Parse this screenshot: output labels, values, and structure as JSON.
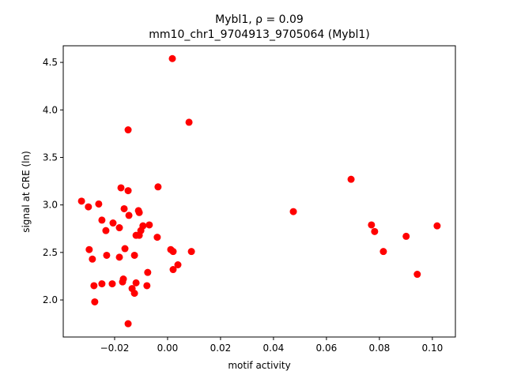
{
  "chart_data": {
    "type": "scatter",
    "title": "Mybl1, ρ = 0.09",
    "subtitle": "mm10_chr1_9704913_9705064 (Mybl1)",
    "x_label": "motif activity",
    "y_label": "signal at CRE (ln)",
    "color": "#ff0000",
    "xlim": [
      -0.0394,
      0.1087
    ],
    "ylim": [
      1.61,
      4.675
    ],
    "xticks": [
      {
        "value": -0.02,
        "label": "−0.02"
      },
      {
        "value": 0,
        "label": "0.00"
      },
      {
        "value": 0.02,
        "label": "0.02"
      },
      {
        "value": 0.04,
        "label": "0.04"
      },
      {
        "value": 0.06,
        "label": "0.06"
      },
      {
        "value": 0.08,
        "label": "0.08"
      },
      {
        "value": 0.1,
        "label": "0.10"
      }
    ],
    "yticks": [
      {
        "value": 2,
        "label": "2.0"
      },
      2.5,
      {
        "value": 3,
        "label": "3.0"
      },
      3.5,
      {
        "value": 4,
        "label": "4.0"
      },
      4.5
    ],
    "x": [
      0.0018,
      0.0081,
      -0.0149,
      0.0693,
      -0.0176,
      -0.0036,
      -0.0149,
      -0.0325,
      -0.026,
      -0.0299,
      -0.0164,
      -0.011,
      -0.0107,
      0.0475,
      -0.0146,
      -0.0248,
      -0.0206,
      -0.0069,
      -0.0093,
      0.077,
      0.0782,
      0.1018,
      -0.0182,
      -0.0233,
      -0.0101,
      -0.0119,
      -0.0107,
      -0.0039,
      0.0901,
      -0.0161,
      -0.0296,
      0.0012,
      0.0021,
      0.009,
      0.0815,
      -0.023,
      -0.0125,
      -0.0182,
      -0.0284,
      0.0039,
      0.0021,
      -0.0075,
      0.0943,
      -0.0167,
      -0.017,
      -0.0119,
      -0.0248,
      -0.0209,
      -0.0078,
      -0.0278,
      -0.0134,
      -0.0125,
      -0.0275,
      -0.0149
    ],
    "y": [
      4.54,
      3.87,
      3.79,
      3.27,
      3.18,
      3.19,
      3.15,
      3.04,
      3.01,
      2.98,
      2.96,
      2.94,
      2.92,
      2.93,
      2.89,
      2.84,
      2.81,
      2.79,
      2.78,
      2.79,
      2.72,
      2.78,
      2.76,
      2.73,
      2.73,
      2.68,
      2.68,
      2.66,
      2.67,
      2.54,
      2.53,
      2.53,
      2.51,
      2.51,
      2.51,
      2.47,
      2.47,
      2.45,
      2.43,
      2.37,
      2.32,
      2.29,
      2.27,
      2.22,
      2.19,
      2.18,
      2.17,
      2.17,
      2.15,
      2.15,
      2.12,
      2.07,
      1.98,
      1.75
    ]
  }
}
